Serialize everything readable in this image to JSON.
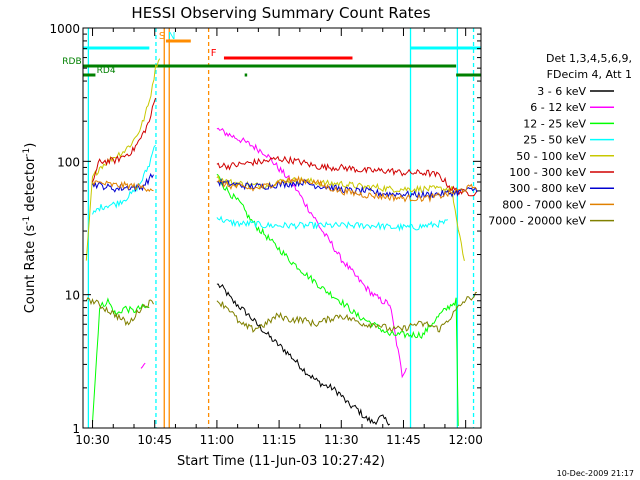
{
  "chart_data": {
    "type": "line",
    "title": "HESSI Observing Summary Count Rates",
    "xlabel": "Start Time (11-Jun-03 10:27:42)",
    "ylabel_main": "Count Rate (s",
    "ylabel_sup1": "-1",
    "ylabel_mid": " detector",
    "ylabel_sup2": "-1",
    "ylabel_end": ")",
    "y_scale": "log",
    "ylim": [
      1,
      1000
    ],
    "xlim_min": [
      0,
      96
    ],
    "x_ticks": [
      {
        "label": "10:30",
        "min": 2.3
      },
      {
        "label": "10:45",
        "min": 17.3
      },
      {
        "label": "11:00",
        "min": 32.3
      },
      {
        "label": "11:15",
        "min": 47.3
      },
      {
        "label": "11:30",
        "min": 62.3
      },
      {
        "label": "11:45",
        "min": 77.3
      },
      {
        "label": "12:00",
        "min": 92.3
      }
    ],
    "y_ticks": [
      {
        "label": "1",
        "value": 1
      },
      {
        "label": "10",
        "value": 10
      },
      {
        "label": "100",
        "value": 100
      },
      {
        "label": "1000",
        "value": 1000
      }
    ],
    "legend_header": [
      "Det 1,3,4,5,6,9,",
      "FDecim 4, Att 1"
    ],
    "series": [
      {
        "name": "3 - 6 keV",
        "color": "#000000",
        "points": [
          [
            32.3,
            12
          ],
          [
            34,
            11
          ],
          [
            36,
            9
          ],
          [
            38,
            8
          ],
          [
            40,
            7
          ],
          [
            42,
            6
          ],
          [
            44,
            5.2
          ],
          [
            46,
            4.5
          ],
          [
            48,
            4
          ],
          [
            50,
            3.5
          ],
          [
            52,
            3
          ],
          [
            54,
            2.6
          ],
          [
            56,
            2.3
          ],
          [
            58,
            2.1
          ],
          [
            60,
            2
          ],
          [
            62,
            1.8
          ],
          [
            64,
            1.5
          ],
          [
            66,
            1.4
          ],
          [
            68,
            1.2
          ],
          [
            70,
            1.1
          ],
          [
            72,
            1.2
          ],
          [
            74,
            1.1
          ]
        ]
      },
      {
        "name": "6 - 12 keV",
        "color": "#ff00ff",
        "points": [
          [
            14,
            2.8
          ],
          [
            15,
            3
          ],
          [
            32.3,
            175
          ],
          [
            35,
            160
          ],
          [
            38,
            145
          ],
          [
            41,
            130
          ],
          [
            44,
            115
          ],
          [
            47,
            90
          ],
          [
            50,
            72
          ],
          [
            52,
            58
          ],
          [
            54,
            46
          ],
          [
            56,
            37
          ],
          [
            58,
            29
          ],
          [
            60,
            24
          ],
          [
            62,
            19
          ],
          [
            64,
            16
          ],
          [
            66,
            13.5
          ],
          [
            68,
            11.5
          ],
          [
            70,
            10
          ],
          [
            72,
            9
          ],
          [
            74,
            8.5
          ],
          [
            77,
            2.5
          ],
          [
            78,
            2.9
          ]
        ]
      },
      {
        "name": "12 - 25 keV",
        "color": "#00ff00",
        "points": [
          [
            2.3,
            1.1
          ],
          [
            4,
            8
          ],
          [
            6,
            9
          ],
          [
            8,
            7
          ],
          [
            10,
            8
          ],
          [
            12,
            7.5
          ],
          [
            14,
            8
          ],
          [
            16,
            8
          ],
          [
            32.3,
            80
          ],
          [
            34,
            65
          ],
          [
            36,
            55
          ],
          [
            38,
            48
          ],
          [
            40,
            38
          ],
          [
            42,
            32
          ],
          [
            44,
            28
          ],
          [
            46,
            24
          ],
          [
            48,
            21
          ],
          [
            50,
            18
          ],
          [
            52,
            16
          ],
          [
            54,
            14
          ],
          [
            56,
            12.5
          ],
          [
            58,
            11
          ],
          [
            60,
            10
          ],
          [
            62,
            9
          ],
          [
            64,
            8
          ],
          [
            66,
            7
          ],
          [
            68,
            6.5
          ],
          [
            70,
            6
          ],
          [
            72,
            5.5
          ],
          [
            74,
            5
          ],
          [
            76,
            5
          ],
          [
            78,
            5
          ],
          [
            80,
            5
          ],
          [
            82,
            5
          ],
          [
            84,
            6
          ],
          [
            86,
            7
          ],
          [
            88,
            8
          ],
          [
            90,
            9
          ],
          [
            90.5,
            1
          ]
        ]
      },
      {
        "name": "25 - 50 keV",
        "color": "#00ffff",
        "points": [
          [
            2.3,
            40
          ],
          [
            4,
            45
          ],
          [
            6,
            47
          ],
          [
            8,
            48
          ],
          [
            10,
            52
          ],
          [
            12,
            58
          ],
          [
            14,
            70
          ],
          [
            16,
            95
          ],
          [
            17.5,
            140
          ],
          [
            32.3,
            38
          ],
          [
            35,
            35
          ],
          [
            38,
            34
          ],
          [
            41,
            34
          ],
          [
            44,
            33
          ],
          [
            47,
            33
          ],
          [
            50,
            33
          ],
          [
            53,
            33
          ],
          [
            56,
            33
          ],
          [
            59,
            33
          ],
          [
            62,
            33
          ],
          [
            65,
            33
          ],
          [
            68,
            33
          ],
          [
            71,
            33
          ],
          [
            74,
            32
          ],
          [
            77,
            32
          ],
          [
            80,
            32
          ],
          [
            83,
            33
          ],
          [
            86,
            34
          ],
          [
            88,
            35
          ]
        ]
      },
      {
        "name": "50 - 100 keV",
        "color": "#c8c800",
        "points": [
          [
            0.8,
            18
          ],
          [
            2.3,
            75
          ],
          [
            4,
            90
          ],
          [
            6,
            100
          ],
          [
            8,
            110
          ],
          [
            10,
            120
          ],
          [
            12,
            140
          ],
          [
            14,
            180
          ],
          [
            16,
            280
          ],
          [
            17.5,
            500
          ],
          [
            18.5,
            620
          ],
          [
            32.3,
            75
          ],
          [
            35,
            70
          ],
          [
            38,
            68
          ],
          [
            41,
            66
          ],
          [
            44,
            66
          ],
          [
            47,
            70
          ],
          [
            50,
            72
          ],
          [
            53,
            72
          ],
          [
            56,
            70
          ],
          [
            59,
            68
          ],
          [
            62,
            68
          ],
          [
            65,
            66
          ],
          [
            68,
            64
          ],
          [
            71,
            64
          ],
          [
            74,
            62
          ],
          [
            77,
            62
          ],
          [
            80,
            62
          ],
          [
            83,
            62
          ],
          [
            86,
            62
          ],
          [
            89,
            62
          ],
          [
            90.5,
            30
          ],
          [
            92,
            18
          ]
        ]
      },
      {
        "name": "100 - 300 keV",
        "color": "#d00000",
        "points": [
          [
            2.3,
            70
          ],
          [
            4,
            100
          ],
          [
            6,
            100
          ],
          [
            8,
            102
          ],
          [
            10,
            110
          ],
          [
            12,
            120
          ],
          [
            14,
            150
          ],
          [
            16,
            200
          ],
          [
            17.5,
            300
          ],
          [
            32.3,
            95
          ],
          [
            35,
            92
          ],
          [
            38,
            95
          ],
          [
            41,
            98
          ],
          [
            44,
            100
          ],
          [
            47,
            105
          ],
          [
            50,
            102
          ],
          [
            53,
            98
          ],
          [
            56,
            92
          ],
          [
            59,
            90
          ],
          [
            62,
            90
          ],
          [
            65,
            88
          ],
          [
            68,
            85
          ],
          [
            71,
            85
          ],
          [
            74,
            85
          ],
          [
            77,
            82
          ],
          [
            80,
            82
          ],
          [
            83,
            82
          ],
          [
            86,
            78
          ],
          [
            89,
            62
          ],
          [
            92,
            58
          ],
          [
            95,
            58
          ]
        ]
      },
      {
        "name": "300 - 800 keV",
        "color": "#0000d0",
        "points": [
          [
            2.3,
            68
          ],
          [
            5,
            65
          ],
          [
            8,
            62
          ],
          [
            11,
            64
          ],
          [
            14,
            63
          ],
          [
            17,
            80
          ],
          [
            32.3,
            70
          ],
          [
            35,
            68
          ],
          [
            38,
            66
          ],
          [
            41,
            65
          ],
          [
            44,
            65
          ],
          [
            47,
            67
          ],
          [
            50,
            68
          ],
          [
            53,
            70
          ],
          [
            56,
            66
          ],
          [
            59,
            64
          ],
          [
            62,
            62
          ],
          [
            65,
            60
          ],
          [
            68,
            60
          ],
          [
            71,
            58
          ],
          [
            74,
            57
          ],
          [
            77,
            57
          ],
          [
            80,
            56
          ],
          [
            83,
            56
          ],
          [
            86,
            57
          ],
          [
            89,
            58
          ],
          [
            92,
            60
          ],
          [
            95,
            62
          ]
        ]
      },
      {
        "name": "800 - 7000 keV",
        "color": "#e08000",
        "points": [
          [
            2.3,
            70
          ],
          [
            5,
            68
          ],
          [
            8,
            66
          ],
          [
            11,
            66
          ],
          [
            14,
            64
          ],
          [
            17,
            62
          ],
          [
            32.3,
            70
          ],
          [
            35,
            66
          ],
          [
            38,
            64
          ],
          [
            41,
            62
          ],
          [
            44,
            65
          ],
          [
            47,
            70
          ],
          [
            50,
            72
          ],
          [
            53,
            72
          ],
          [
            56,
            70
          ],
          [
            59,
            64
          ],
          [
            62,
            60
          ],
          [
            65,
            58
          ],
          [
            68,
            56
          ],
          [
            71,
            55
          ],
          [
            74,
            54
          ],
          [
            77,
            53
          ],
          [
            80,
            53
          ],
          [
            83,
            53
          ],
          [
            86,
            55
          ],
          [
            89,
            58
          ],
          [
            92,
            62
          ],
          [
            95,
            65
          ]
        ]
      },
      {
        "name": "7000 - 20000 keV",
        "color": "#808000",
        "points": [
          [
            0.8,
            9
          ],
          [
            2.3,
            9
          ],
          [
            5,
            8
          ],
          [
            8,
            7
          ],
          [
            11,
            6
          ],
          [
            14,
            8
          ],
          [
            17,
            9
          ],
          [
            32.3,
            9
          ],
          [
            35,
            8
          ],
          [
            38,
            6
          ],
          [
            41,
            5.5
          ],
          [
            44,
            6
          ],
          [
            47,
            7
          ],
          [
            50,
            6.5
          ],
          [
            53,
            6.5
          ],
          [
            56,
            6
          ],
          [
            59,
            6.5
          ],
          [
            62,
            7
          ],
          [
            65,
            6.5
          ],
          [
            68,
            6
          ],
          [
            71,
            6
          ],
          [
            74,
            5.5
          ],
          [
            77,
            5.5
          ],
          [
            80,
            6
          ],
          [
            83,
            6
          ],
          [
            86,
            5.5
          ],
          [
            89,
            7
          ],
          [
            92,
            9
          ],
          [
            95,
            10
          ]
        ]
      }
    ],
    "flag_bars": [
      {
        "color": "#00ffff",
        "ranges": [
          [
            0,
            16
          ],
          [
            79,
            96
          ]
        ],
        "level": 0
      },
      {
        "color": "#ff8c00",
        "ranges": [
          [
            20,
            26
          ]
        ],
        "level": 1
      },
      {
        "color": "#ff0000",
        "ranges": [
          [
            34,
            65
          ]
        ],
        "level": 2
      },
      {
        "color": "#008000",
        "ranges": [
          [
            0,
            90
          ]
        ],
        "level": 3
      },
      {
        "color": "#008000",
        "ranges": [
          [
            0,
            3
          ],
          [
            39,
            39.6
          ],
          [
            90,
            96
          ]
        ],
        "level": 4
      }
    ],
    "flag_labels": [
      {
        "text": "S",
        "min": 18.3,
        "color": "#ff8c00",
        "level": 1
      },
      {
        "text": "N",
        "min": 20.5,
        "color": "#00ffff",
        "level": 1
      },
      {
        "text": "F",
        "min": 30.8,
        "color": "#ff0000",
        "level": 2
      },
      {
        "text": "RDB",
        "min": -5,
        "color": "#008000",
        "level": 3
      },
      {
        "text": "RD4",
        "min": 3.3,
        "color": "#008000",
        "level": 4
      }
    ],
    "vertical_markers": [
      {
        "min": 17.6,
        "color": "#00ffff",
        "dashed": true
      },
      {
        "min": 19.6,
        "color": "#ff8c00",
        "dashed": false
      },
      {
        "min": 20.8,
        "color": "#ff8c00",
        "dashed": false
      },
      {
        "min": 30.3,
        "color": "#ff8c00",
        "dashed": true
      },
      {
        "min": 1.3,
        "color": "#00ffff",
        "dashed": false
      },
      {
        "min": 79.0,
        "color": "#00ffff",
        "dashed": false
      },
      {
        "min": 90.3,
        "color": "#00ffff",
        "dashed": false
      },
      {
        "min": 94.2,
        "color": "#00ffff",
        "dashed": true
      }
    ],
    "timestamp": "10-Dec-2009 21:17"
  }
}
